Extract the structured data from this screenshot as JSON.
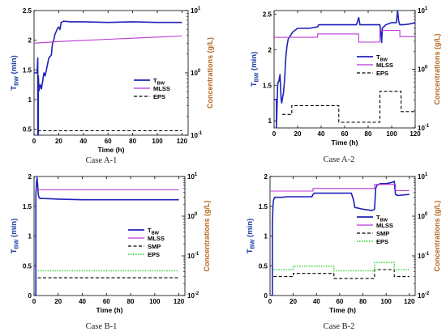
{
  "colors": {
    "tbw": "#1f22b8",
    "mlss": "#b838d6",
    "smp": "#000000",
    "eps_a": "#000000",
    "eps_b": "#1fd11f",
    "ylabel_left": "#1f3fa3",
    "ylabel_right": "#b8651c"
  },
  "chart_data": [
    {
      "type": "line",
      "caption": "Case A-1",
      "xlabel": "Time (h)",
      "ylabel_left": {
        "main": "T",
        "sub": "BW",
        "rest": " (min)"
      },
      "ylabel_right": "Concentrations (g/L)",
      "xlim": [
        0,
        125
      ],
      "xticks": [
        "0",
        "20",
        "40",
        "60",
        "80",
        "100",
        "120"
      ],
      "xtick_values": [
        0,
        20,
        40,
        60,
        80,
        100,
        120
      ],
      "ylim": [
        0.4,
        2.5
      ],
      "yticks": [
        "0.5",
        "1",
        "1.5",
        "2",
        "2.5"
      ],
      "ytick_values": [
        0.5,
        1,
        1.5,
        2,
        2.5
      ],
      "y2lim": [
        0.1,
        10
      ],
      "y2scale": "log",
      "y2ticks_base": [
        "10",
        "10",
        "10"
      ],
      "y2ticks_exp": [
        "-1",
        "0",
        "1"
      ],
      "y2tick_values": [
        0.1,
        1,
        10
      ],
      "legend": "right",
      "series": [
        {
          "name": {
            "main": "T",
            "sub": "BW"
          },
          "axis": "left",
          "color": "#1f22b8",
          "dash": "",
          "width": 1.6,
          "x": [
            0,
            2.5,
            3,
            3,
            3.5,
            3.5,
            4,
            4.5,
            5,
            6,
            8,
            9,
            10,
            12,
            14,
            15,
            16,
            17,
            18,
            19,
            20,
            21,
            22,
            24,
            30,
            40,
            60,
            80,
            100,
            120
          ],
          "y": [
            1.45,
            1.45,
            1.7,
            0.4,
            0.4,
            1.4,
            1.15,
            1.2,
            1.25,
            1.18,
            1.45,
            1.4,
            1.5,
            1.7,
            1.75,
            1.95,
            2.0,
            2.1,
            2.15,
            2.2,
            2.22,
            2.18,
            2.3,
            2.32,
            2.31,
            2.31,
            2.3,
            2.31,
            2.3,
            2.3
          ]
        },
        {
          "name": "MLSS",
          "axis": "right",
          "color": "#b838d6",
          "dash": "",
          "width": 1.1,
          "x": [
            0,
            20,
            40,
            60,
            80,
            100,
            120
          ],
          "y": [
            3.0,
            3.18,
            3.32,
            3.46,
            3.6,
            3.75,
            3.9
          ]
        },
        {
          "name": "EPS",
          "axis": "right",
          "color": "#000000",
          "dash": "4,2.5",
          "width": 1.1,
          "x": [
            3,
            120
          ],
          "y": [
            0.118,
            0.118
          ]
        }
      ]
    },
    {
      "type": "line",
      "caption": "Case A-2",
      "xlabel": "Time (h)",
      "ylabel_left": {
        "main": "T",
        "sub": "BW",
        "rest": " (min)"
      },
      "ylabel_right": "Concentrations (g/L)",
      "xlim": [
        0,
        120
      ],
      "xticks": [
        "0",
        "20",
        "40",
        "60",
        "80",
        "100",
        "120"
      ],
      "xtick_values": [
        0,
        20,
        40,
        60,
        80,
        100,
        120
      ],
      "ylim": [
        0.9,
        2.55
      ],
      "yticks": [
        "1",
        "1.5",
        "2",
        "2.5"
      ],
      "ytick_values": [
        1,
        1.5,
        2,
        2.5
      ],
      "y2lim": [
        0.1,
        10
      ],
      "y2scale": "log",
      "y2ticks_base": [
        "10",
        "10",
        "10"
      ],
      "y2ticks_exp": [
        "-1",
        "0",
        "1"
      ],
      "y2tick_values": [
        0.1,
        1,
        10
      ],
      "legend": "right",
      "series": [
        {
          "name": {
            "main": "T",
            "sub": "BW"
          },
          "axis": "left",
          "color": "#1f22b8",
          "dash": "",
          "width": 1.6,
          "x": [
            0,
            2,
            2,
            3,
            3.5,
            4,
            5,
            6,
            6.5,
            7,
            8,
            9,
            10,
            11,
            12,
            14,
            16,
            20,
            30,
            37,
            38,
            50,
            60,
            70,
            72,
            73,
            80,
            90,
            91,
            91.5,
            92,
            95,
            100,
            104,
            105,
            106,
            107,
            108,
            110,
            115,
            120
          ],
          "y": [
            1.3,
            1.3,
            0.9,
            1.5,
            1.55,
            1.55,
            1.65,
            1.3,
            1.25,
            1.3,
            1.4,
            1.6,
            1.9,
            2.05,
            2.15,
            2.2,
            2.25,
            2.3,
            2.3,
            2.32,
            2.35,
            2.35,
            2.35,
            2.35,
            2.45,
            2.35,
            2.35,
            2.35,
            2.2,
            2.1,
            2.3,
            2.35,
            2.38,
            2.38,
            2.55,
            2.4,
            2.35,
            2.35,
            2.35,
            2.36,
            2.38
          ]
        },
        {
          "name": "MLSS",
          "axis": "right",
          "color": "#b838d6",
          "dash": "",
          "width": 1.1,
          "x": [
            0,
            37,
            37,
            72,
            72,
            90,
            90,
            107,
            107,
            120
          ],
          "y": [
            3.5,
            3.5,
            4.0,
            4.0,
            2.9,
            2.9,
            4.6,
            4.6,
            3.6,
            3.6
          ]
        },
        {
          "name": "EPS",
          "axis": "right",
          "color": "#000000",
          "dash": "4,2.5",
          "width": 1.1,
          "x": [
            7,
            15,
            15,
            38,
            38,
            55,
            55,
            75,
            75,
            90,
            90,
            108,
            108,
            120
          ],
          "y": [
            0.17,
            0.17,
            0.24,
            0.24,
            0.24,
            0.24,
            0.125,
            0.125,
            0.125,
            0.125,
            0.42,
            0.42,
            0.19,
            0.19
          ]
        }
      ]
    },
    {
      "type": "line",
      "caption": "Case B-1",
      "xlabel": "Time (h)",
      "ylabel_left": {
        "main": "T",
        "sub": "BW",
        "rest": " (min)"
      },
      "ylabel_right": "Concentrations (g/L)",
      "xlim": [
        0,
        125
      ],
      "xticks": [
        "0",
        "20",
        "40",
        "60",
        "80",
        "100",
        "120"
      ],
      "xtick_values": [
        0,
        20,
        40,
        60,
        80,
        100,
        120
      ],
      "ylim": [
        0,
        2
      ],
      "yticks": [
        "0",
        "0.5",
        "1",
        "1.5",
        "2"
      ],
      "ytick_values": [
        0,
        0.5,
        1,
        1.5,
        2
      ],
      "y2lim": [
        0.01,
        10
      ],
      "y2scale": "log",
      "y2ticks_base": [
        "10",
        "10",
        "10",
        "10"
      ],
      "y2ticks_exp": [
        "-2",
        "-1",
        "0",
        "1"
      ],
      "y2tick_values": [
        0.01,
        0.1,
        1,
        10
      ],
      "legend": "right",
      "series": [
        {
          "name": {
            "main": "T",
            "sub": "BW"
          },
          "axis": "left",
          "color": "#1f22b8",
          "dash": "",
          "width": 1.6,
          "x": [
            0,
            1.5,
            1.5,
            2,
            2.5,
            3,
            3.5,
            4,
            5,
            8,
            20,
            40,
            44,
            60,
            80,
            100,
            120
          ],
          "y": [
            0,
            0,
            1.7,
            1.9,
            1.98,
            1.85,
            1.7,
            1.65,
            1.63,
            1.63,
            1.62,
            1.61,
            1.61,
            1.61,
            1.61,
            1.61,
            1.61
          ]
        },
        {
          "name": "MLSS",
          "axis": "right",
          "color": "#b838d6",
          "dash": "",
          "width": 1.1,
          "x": [
            2,
            120
          ],
          "y": [
            4.6,
            4.6
          ]
        },
        {
          "name": "SMP",
          "axis": "right",
          "color": "#000000",
          "dash": "4,2.5",
          "width": 1.1,
          "x": [
            3,
            120
          ],
          "y": [
            0.028,
            0.028
          ]
        },
        {
          "name": "EPS",
          "axis": "right",
          "color": "#1fd11f",
          "dash": "1.5,1.5",
          "width": 1.3,
          "x": [
            3,
            120
          ],
          "y": [
            0.042,
            0.042
          ]
        }
      ]
    },
    {
      "type": "line",
      "caption": "Case B-2",
      "xlabel": "Time (h)",
      "ylabel_left": {
        "main": "T",
        "sub": "BW",
        "rest": " (min)"
      },
      "ylabel_right": "Concentrations (g/L)",
      "xlim": [
        0,
        125
      ],
      "xticks": [
        "0",
        "20",
        "40",
        "60",
        "80",
        "100",
        "120"
      ],
      "xtick_values": [
        0,
        20,
        40,
        60,
        80,
        100,
        120
      ],
      "ylim": [
        0,
        2
      ],
      "yticks": [
        "0",
        "0.5",
        "1",
        "1.5",
        "2"
      ],
      "ytick_values": [
        0,
        0.5,
        1,
        1.5,
        2
      ],
      "y2lim": [
        0.01,
        10
      ],
      "y2scale": "log",
      "y2ticks_base": [
        "10",
        "10",
        "10",
        "10"
      ],
      "y2ticks_exp": [
        "-2",
        "-1",
        "0",
        "1"
      ],
      "y2tick_values": [
        0.01,
        0.1,
        1,
        10
      ],
      "legend": "right",
      "series": [
        {
          "name": {
            "main": "T",
            "sub": "BW"
          },
          "axis": "left",
          "color": "#1f22b8",
          "dash": "",
          "width": 1.6,
          "x": [
            0,
            2,
            2,
            2.5,
            3,
            4,
            6,
            8,
            10,
            15,
            20,
            30,
            36,
            37,
            38,
            55,
            70,
            72,
            73,
            80,
            88,
            90,
            91,
            92,
            95,
            100,
            105,
            107,
            108,
            110,
            120
          ],
          "y": [
            0,
            0,
            1.2,
            1.5,
            1.6,
            1.65,
            1.65,
            1.65,
            1.65,
            1.66,
            1.66,
            1.66,
            1.66,
            1.7,
            1.72,
            1.72,
            1.72,
            1.6,
            1.48,
            1.45,
            1.43,
            1.45,
            1.8,
            1.85,
            1.88,
            1.88,
            1.9,
            1.92,
            1.7,
            1.68,
            1.7
          ]
        },
        {
          "name": "MLSS",
          "axis": "right",
          "color": "#b838d6",
          "dash": "",
          "width": 1.1,
          "x": [
            0,
            37,
            37,
            90,
            90,
            108,
            108,
            120
          ],
          "y": [
            4.3,
            4.3,
            5.0,
            5.0,
            6.3,
            6.3,
            4.4,
            4.4
          ]
        },
        {
          "name": "SMP",
          "axis": "right",
          "color": "#000000",
          "dash": "4,2.5",
          "width": 1.1,
          "x": [
            3,
            20,
            20,
            55,
            55,
            90,
            90,
            107,
            107,
            120
          ],
          "y": [
            0.03,
            0.03,
            0.036,
            0.036,
            0.027,
            0.027,
            0.045,
            0.045,
            0.03,
            0.03
          ]
        },
        {
          "name": "EPS",
          "axis": "right",
          "color": "#1fd11f",
          "dash": "1.5,1.5",
          "width": 1.3,
          "x": [
            3,
            20,
            20,
            55,
            55,
            90,
            90,
            107,
            107,
            120
          ],
          "y": [
            0.045,
            0.045,
            0.055,
            0.055,
            0.042,
            0.042,
            0.068,
            0.068,
            0.045,
            0.045
          ]
        }
      ]
    }
  ]
}
